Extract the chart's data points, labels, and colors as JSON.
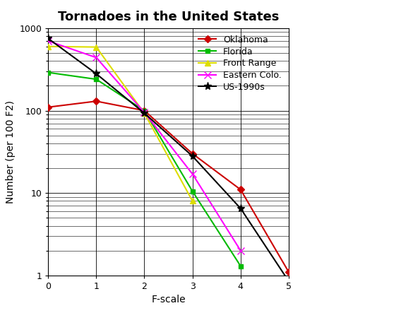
{
  "title": "Tornadoes in the United States",
  "xlabel": "F-scale",
  "ylabel": "Number (per 100 F2)",
  "series": [
    {
      "label": "Oklahoma",
      "color": "#cc0000",
      "marker": "D",
      "markersize": 5,
      "x": [
        0,
        1,
        2,
        3,
        4,
        5
      ],
      "y": [
        110,
        130,
        100,
        30,
        11,
        1.1
      ]
    },
    {
      "label": "Florida",
      "color": "#00bb00",
      "marker": "s",
      "markersize": 5,
      "x": [
        0,
        1,
        2,
        3,
        4
      ],
      "y": [
        290,
        240,
        100,
        10.5,
        1.3
      ]
    },
    {
      "label": "Front Range",
      "color": "#dddd00",
      "marker": "^",
      "markersize": 6,
      "x": [
        0,
        1,
        2,
        3
      ],
      "y": [
        600,
        590,
        93,
        8
      ]
    },
    {
      "label": "Eastern Colo.",
      "color": "#ff00ff",
      "marker": "x",
      "markersize": 7,
      "x": [
        0,
        1,
        2,
        3,
        4
      ],
      "y": [
        700,
        440,
        95,
        17,
        2.0
      ]
    },
    {
      "label": "US-1990s",
      "color": "#000000",
      "marker": "*",
      "markersize": 8,
      "x": [
        0,
        1,
        2,
        3,
        4,
        5
      ],
      "y": [
        750,
        280,
        93,
        28,
        6.5,
        0.85
      ]
    }
  ],
  "xlim": [
    0,
    5
  ],
  "ylim": [
    1,
    1000
  ],
  "xticks": [
    0,
    1,
    2,
    3,
    4,
    5
  ],
  "ytick_labels": [
    "1",
    "",
    "10",
    "",
    "100",
    "",
    "1000"
  ],
  "background_color": "#ffffff",
  "grid_color": "#000000",
  "title_fontsize": 13,
  "axis_fontsize": 10,
  "tick_fontsize": 9,
  "legend_fontsize": 9
}
